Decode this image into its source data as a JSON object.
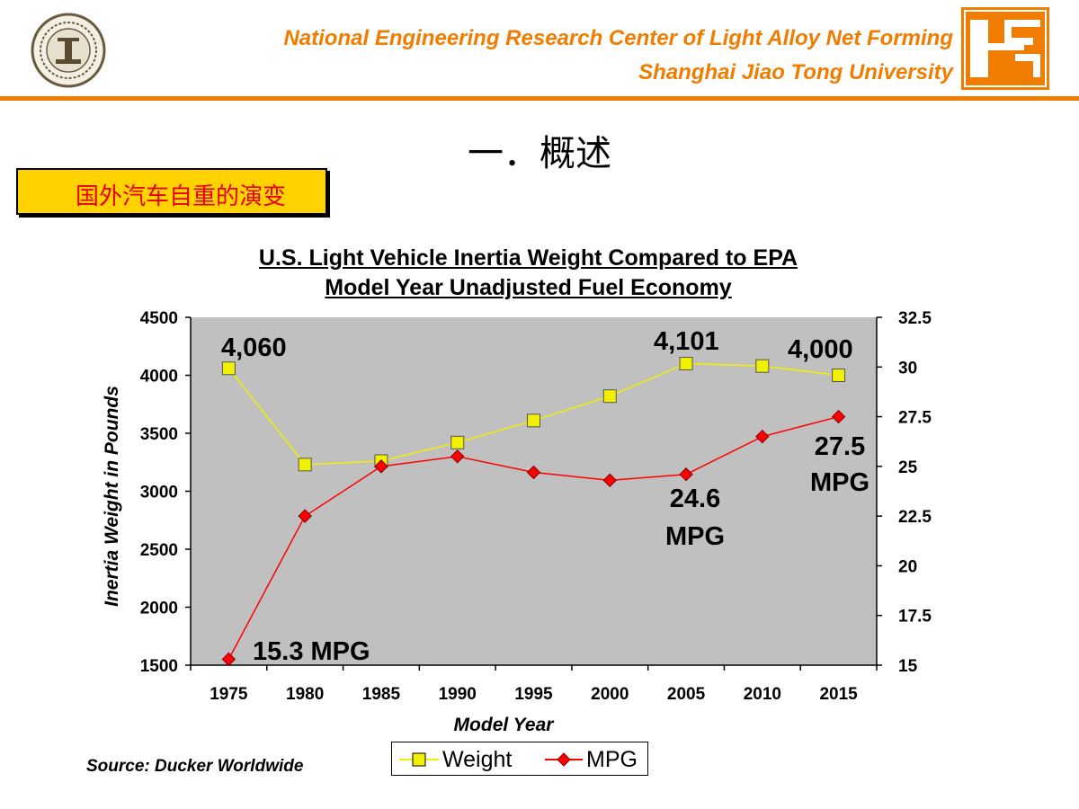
{
  "header": {
    "line1": "National Engineering Research Center of Light Alloy Net Forming",
    "line2": "Shanghai Jiao Tong University",
    "accent_color": "#f07d00",
    "left_logo_icon": "university-seal-icon",
    "right_logo_icon": "research-center-logo-icon"
  },
  "section_title": "一．概述",
  "subtitle": "国外汽车自重的演变",
  "source_note": "Source: Ducker Worldwide",
  "chart_data": {
    "type": "line",
    "title_line1": "U.S. Light Vehicle Inertia Weight Compared to EPA",
    "title_line2": "Model Year Unadjusted Fuel Economy",
    "xlabel": "Model Year",
    "ylabel": "Inertia Weight in Pounds",
    "categories": [
      "1975",
      "1980",
      "1985",
      "1990",
      "1995",
      "2000",
      "2005",
      "2010",
      "2015"
    ],
    "y_left": {
      "min": 1500,
      "max": 4500,
      "ticks": [
        "1500",
        "2000",
        "2500",
        "3000",
        "3500",
        "4000",
        "4500"
      ]
    },
    "y_right": {
      "min": 15,
      "max": 32.5,
      "ticks": [
        "15",
        "17.5",
        "20",
        "22.5",
        "25",
        "27.5",
        "30",
        "32.5"
      ]
    },
    "grid": false,
    "plot_background": "#c0c0c0",
    "legend_position": "bottom",
    "series": [
      {
        "name": "Weight",
        "axis": "left",
        "color": "#f0f000",
        "marker": "square",
        "values": [
          4060,
          3230,
          3260,
          3420,
          3610,
          3820,
          4101,
          4080,
          4000
        ]
      },
      {
        "name": "MPG",
        "axis": "right",
        "color": "#ff0000",
        "marker": "diamond",
        "values": [
          15.3,
          22.5,
          25.0,
          25.5,
          24.7,
          24.3,
          24.6,
          26.5,
          27.5
        ]
      }
    ],
    "annotations": [
      {
        "text": "4,060",
        "x": "1975",
        "series": "Weight"
      },
      {
        "text": "4,101",
        "x": "2005",
        "series": "Weight"
      },
      {
        "text": "4,000",
        "x": "2015",
        "series": "Weight"
      },
      {
        "text": "15.3 MPG",
        "x": "1975",
        "series": "MPG"
      },
      {
        "text": "24.6",
        "text2": "MPG",
        "x": "2005",
        "series": "MPG"
      },
      {
        "text": "27.5",
        "text2": "MPG",
        "x": "2015",
        "series": "MPG"
      }
    ]
  }
}
